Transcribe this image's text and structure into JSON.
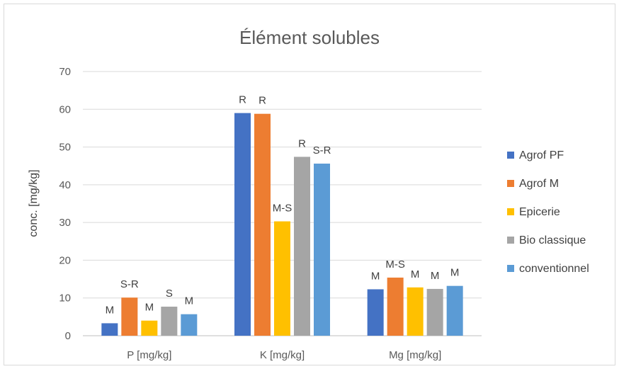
{
  "chart_data": {
    "type": "bar",
    "title": "Élément solubles",
    "ylabel": "conc. [mg/kg]",
    "xlabel": "",
    "ylim": [
      0,
      70
    ],
    "yticks": [
      0,
      10,
      20,
      30,
      40,
      50,
      60,
      70
    ],
    "grid": true,
    "legend_position": "right",
    "categories": [
      "P [mg/kg]",
      "K [mg/kg]",
      "Mg [mg/kg]"
    ],
    "series": [
      {
        "name": "Agrof PF",
        "color": "#4472C4",
        "values": [
          3.3,
          59.0,
          12.3
        ],
        "labels": [
          "M",
          "R",
          "M"
        ]
      },
      {
        "name": "Agrof M",
        "color": "#ED7D31",
        "values": [
          10.1,
          58.8,
          15.4
        ],
        "labels": [
          "S-R",
          "R",
          "M-S"
        ]
      },
      {
        "name": "Epicerie",
        "color": "#FFC000",
        "values": [
          4.0,
          30.3,
          12.8
        ],
        "labels": [
          "M",
          "M-S",
          "M"
        ]
      },
      {
        "name": "Bio classique",
        "color": "#A5A5A5",
        "values": [
          7.7,
          47.4,
          12.4
        ],
        "labels": [
          "S",
          "R",
          "M"
        ]
      },
      {
        "name": "conventionnel",
        "color": "#5B9BD5",
        "values": [
          5.7,
          45.6,
          13.2
        ],
        "labels": [
          "M",
          "S-R",
          "M"
        ]
      }
    ]
  }
}
